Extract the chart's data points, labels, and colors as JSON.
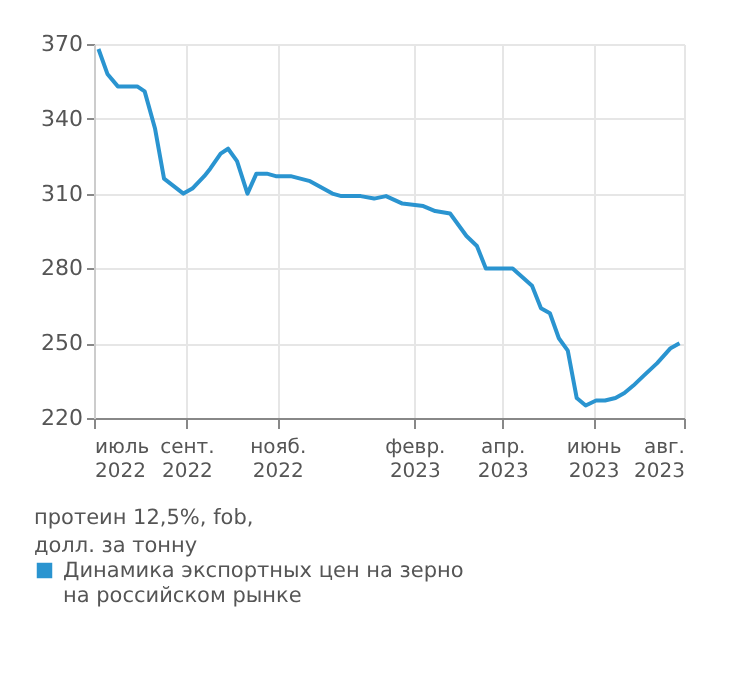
{
  "chart_data": {
    "type": "line",
    "x": [
      "2022-07-04",
      "2022-07-10",
      "2022-07-17",
      "2022-07-30",
      "2022-08-04",
      "2022-08-11",
      "2022-08-17",
      "2022-08-30",
      "2022-09-05",
      "2022-09-13",
      "2022-09-17",
      "2022-09-24",
      "2022-09-29",
      "2022-10-05",
      "2022-10-12",
      "2022-10-18",
      "2022-10-25",
      "2022-10-31",
      "2022-11-10",
      "2022-11-23",
      "2022-12-08",
      "2022-12-14",
      "2022-12-27",
      "2023-01-05",
      "2023-01-13",
      "2023-01-24",
      "2023-02-07",
      "2023-02-15",
      "2023-02-25",
      "2023-03-08",
      "2023-03-15",
      "2023-03-21",
      "2023-03-27",
      "2023-04-03",
      "2023-04-08",
      "2023-04-21",
      "2023-04-27",
      "2023-05-03",
      "2023-05-09",
      "2023-05-15",
      "2023-05-21",
      "2023-05-27",
      "2023-06-03",
      "2023-06-09",
      "2023-06-16",
      "2023-06-22",
      "2023-06-28",
      "2023-07-05",
      "2023-07-14",
      "2023-07-23",
      "2023-07-29"
    ],
    "series": [
      {
        "name": "Динамика экспортных цен на зерно на российском рынке",
        "color": "#2a94d0",
        "values": [
          368,
          358,
          353,
          353,
          351,
          336,
          316,
          310,
          312,
          317,
          320,
          326,
          328,
          323,
          310,
          318,
          318,
          317,
          317,
          315,
          310,
          309,
          309,
          308,
          309,
          306,
          305,
          303,
          302,
          293,
          289,
          280,
          280,
          280,
          280,
          273,
          264,
          262,
          252,
          247,
          228,
          225,
          227,
          227,
          228,
          230,
          233,
          237,
          242,
          248,
          250
        ]
      }
    ],
    "xlim": [
      "2022-07-01",
      "2023-08-01"
    ],
    "xticks": [
      {
        "value": "2022-07-01",
        "label": "июль\n2022"
      },
      {
        "value": "2022-09-01",
        "label": "сент.\n2022"
      },
      {
        "value": "2022-11-01",
        "label": "нояб.\n2022"
      },
      {
        "value": "2023-02-01",
        "label": "февр.\n2023"
      },
      {
        "value": "2023-04-01",
        "label": "апр.\n2023"
      },
      {
        "value": "2023-06-01",
        "label": "июнь\n2023"
      },
      {
        "value": "2023-08-01",
        "label": "авг.\n2023"
      }
    ],
    "ylim": [
      220,
      370
    ],
    "yticks": [
      220,
      250,
      280,
      310,
      340,
      370
    ],
    "grid": true,
    "legend": "bottom",
    "line_style": "solid",
    "marker": "none",
    "annotations": [
      "протеин 12,5%, fob,\nдолл. за тонну"
    ]
  }
}
